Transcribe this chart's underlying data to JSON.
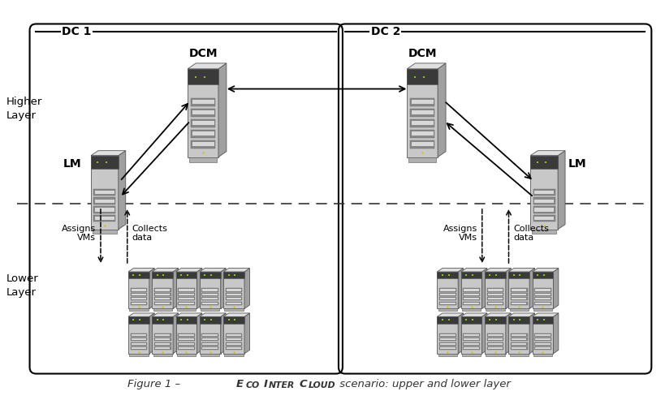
{
  "fig_width": 8.19,
  "fig_height": 4.93,
  "bg_color": "#ffffff",
  "dc1_label": "DC 1",
  "dc2_label": "DC 2",
  "higher_layer_label": "Higher\nLayer",
  "lower_layer_label": "Lower\nLayer",
  "dcm_label": "DCM",
  "lm_label": "LM",
  "assigns_vms_label": "Assigns\nVMs",
  "collects_data_label": "Collects\ndata",
  "server_face_color": "#c8c8c8",
  "server_side_color": "#a0a0a0",
  "server_top_color": "#e0e0e0",
  "server_dark_band": "#404040",
  "server_slot_color": "#888888",
  "server_slot_light": "#d8d8d8",
  "server_base_color": "#b0b0b0",
  "server_green_light": "#88cc00",
  "server_yellow_light": "#cccc00"
}
